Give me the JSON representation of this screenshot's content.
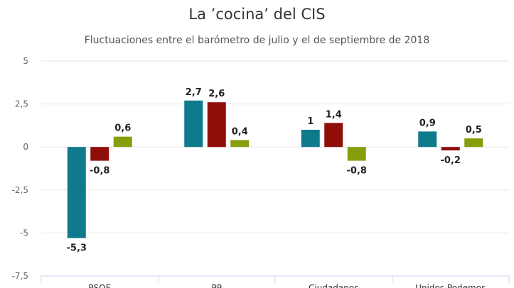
{
  "title": "La ’cocina’ del CIS",
  "subtitle": "Fluctuaciones entre el barómetro de julio y el de septiembre de 2018",
  "colors": {
    "series": [
      "#0f7a8c",
      "#8f0e0a",
      "#879d0a"
    ],
    "grid": "#e6e6e6",
    "axis": "#ccd6eb"
  },
  "chart_data": {
    "type": "bar",
    "categories": [
      "PSOE",
      "PP",
      "Ciudadanos",
      "Unidos Podemos"
    ],
    "series": [
      {
        "values": [
          -5.3,
          2.7,
          1,
          0.9
        ]
      },
      {
        "values": [
          -0.8,
          2.6,
          1.4,
          -0.2
        ]
      },
      {
        "values": [
          0.6,
          0.4,
          -0.8,
          0.5
        ]
      }
    ],
    "data_labels": [
      [
        "-5,3",
        "2,7",
        "1",
        "0,9"
      ],
      [
        "-0,8",
        "2,6",
        "1,4",
        "-0,2"
      ],
      [
        "0,6",
        "0,4",
        "-0,8",
        "0,5"
      ]
    ],
    "ylim": [
      -7.5,
      5
    ],
    "yticks": [
      5,
      2.5,
      0,
      -2.5,
      -5,
      -7.5
    ],
    "ytick_labels": [
      "5",
      "2,5",
      "0",
      "-2,5",
      "-5",
      "-7,5"
    ],
    "grid": true,
    "legend": "none"
  }
}
